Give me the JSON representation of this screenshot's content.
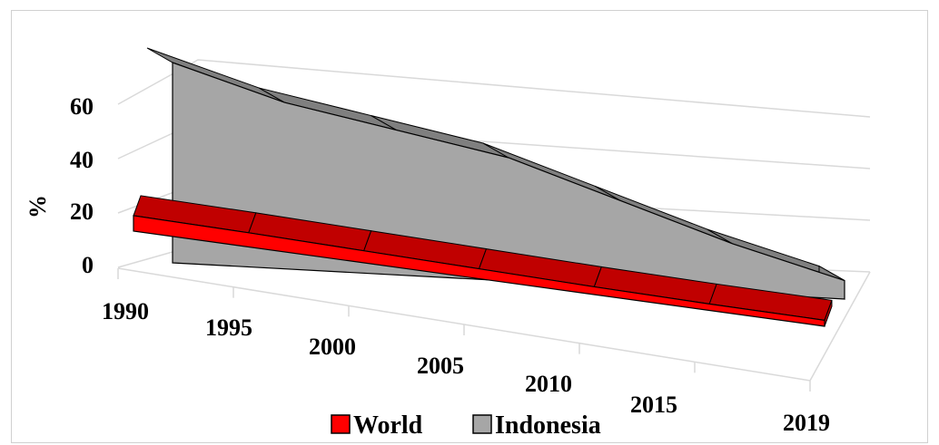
{
  "chart_data": {
    "type": "area",
    "style": "3d-ribbon",
    "x": [
      "1990",
      "1995",
      "2000",
      "2005",
      "2010",
      "2015",
      "2019"
    ],
    "x_tick_labels": [
      "1990",
      "1995",
      "2000",
      "2005",
      "2010",
      "2015",
      "2019"
    ],
    "series": [
      {
        "name": "World",
        "values": [
          18,
          16.5,
          14,
          11.5,
          9,
          7.5,
          7
        ],
        "color": "#ff0000",
        "top_color": "#c00000"
      },
      {
        "name": "Indonesia",
        "values": [
          65,
          54,
          47,
          40,
          28,
          16,
          6
        ],
        "color": "#a6a6a6",
        "top_color": "#7f7f7f"
      }
    ],
    "ylabel": "%",
    "xlabel": "",
    "title": "",
    "ylim": [
      0,
      60
    ],
    "y_ticks": [
      "0",
      "20",
      "40",
      "60"
    ],
    "grid": true,
    "legend_position": "bottom",
    "colors": {
      "gridline": "#d9d9d9",
      "edge": "#000000"
    }
  }
}
